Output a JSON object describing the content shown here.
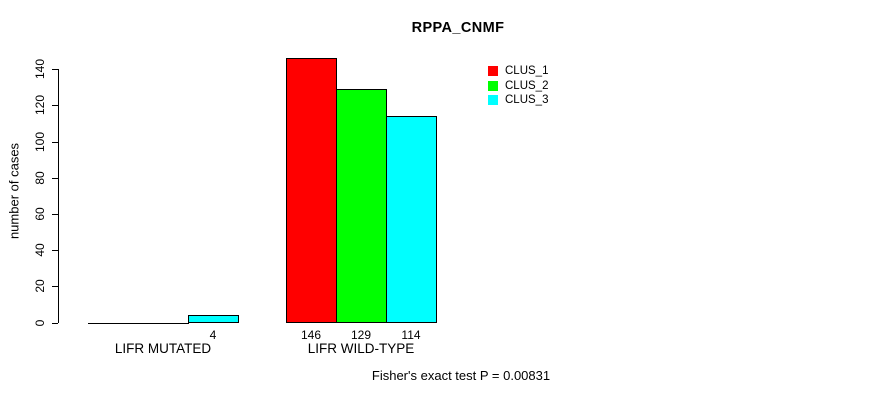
{
  "chart_data": {
    "type": "bar",
    "title": "RPPA_CNMF",
    "ylabel": "number of cases",
    "xlabel": "",
    "categories": [
      "LIFR MUTATED",
      "LIFR WILD-TYPE"
    ],
    "series": [
      {
        "name": "CLUS_1",
        "color": "#ff0000",
        "values": [
          0,
          146
        ]
      },
      {
        "name": "CLUS_2",
        "color": "#00ff00",
        "values": [
          0,
          129
        ]
      },
      {
        "name": "CLUS_3",
        "color": "#00ffff",
        "values": [
          4,
          114
        ]
      }
    ],
    "bar_value_labels_shown": [
      "4",
      "146",
      "129",
      "114"
    ],
    "yticks": [
      0,
      20,
      40,
      60,
      80,
      100,
      120,
      140
    ],
    "ylim": [
      0,
      140
    ],
    "grid": false,
    "legend_position": "top-right",
    "legend_items": [
      {
        "label": "CLUS_1",
        "color": "#ff0000"
      },
      {
        "label": "CLUS_2",
        "color": "#00ff00"
      },
      {
        "label": "CLUS_3",
        "color": "#00ffff"
      }
    ],
    "annotation": "Fisher's exact test P = 0.00831"
  }
}
